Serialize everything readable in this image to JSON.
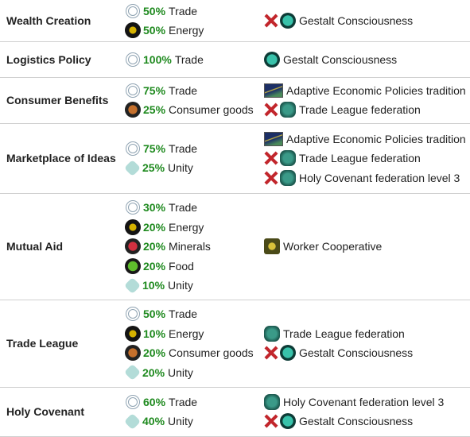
{
  "table": {
    "rows": [
      {
        "name": "Wealth Creation",
        "effects": [
          {
            "percent": "50%",
            "resource": "Trade"
          },
          {
            "percent": "50%",
            "resource": "Energy"
          }
        ],
        "requirements": [
          "Gestalt Consciousness"
        ]
      },
      {
        "name": "Logistics Policy",
        "effects": [
          {
            "percent": "100%",
            "resource": "Trade"
          }
        ],
        "requirements": [
          "Gestalt Consciousness"
        ]
      },
      {
        "name": "Consumer Benefits",
        "effects": [
          {
            "percent": "75%",
            "resource": "Trade"
          },
          {
            "percent": "25%",
            "resource": "Consumer goods"
          }
        ],
        "requirements": [
          "Adaptive Economic Policies tradition",
          "Trade League federation"
        ]
      },
      {
        "name": "Marketplace of Ideas",
        "effects": [
          {
            "percent": "75%",
            "resource": "Trade"
          },
          {
            "percent": "25%",
            "resource": "Unity"
          }
        ],
        "requirements": [
          "Adaptive Economic Policies tradition",
          "Trade League federation",
          "Holy Covenant federation level 3"
        ]
      },
      {
        "name": "Mutual Aid",
        "effects": [
          {
            "percent": "30%",
            "resource": "Trade"
          },
          {
            "percent": "20%",
            "resource": "Energy"
          },
          {
            "percent": "20%",
            "resource": "Minerals"
          },
          {
            "percent": "20%",
            "resource": "Food"
          },
          {
            "percent": "10%",
            "resource": "Unity"
          }
        ],
        "requirements": [
          "Worker Cooperative"
        ]
      },
      {
        "name": "Trade League",
        "effects": [
          {
            "percent": "50%",
            "resource": "Trade"
          },
          {
            "percent": "10%",
            "resource": "Energy"
          },
          {
            "percent": "20%",
            "resource": "Consumer goods"
          },
          {
            "percent": "20%",
            "resource": "Unity"
          }
        ],
        "requirements": [
          "Trade League federation",
          "Gestalt Consciousness"
        ]
      },
      {
        "name": "Holy Covenant",
        "effects": [
          {
            "percent": "60%",
            "resource": "Trade"
          },
          {
            "percent": "40%",
            "resource": "Unity"
          }
        ],
        "requirements": [
          "Holy Covenant federation level 3",
          "Gestalt Consciousness"
        ]
      }
    ]
  }
}
